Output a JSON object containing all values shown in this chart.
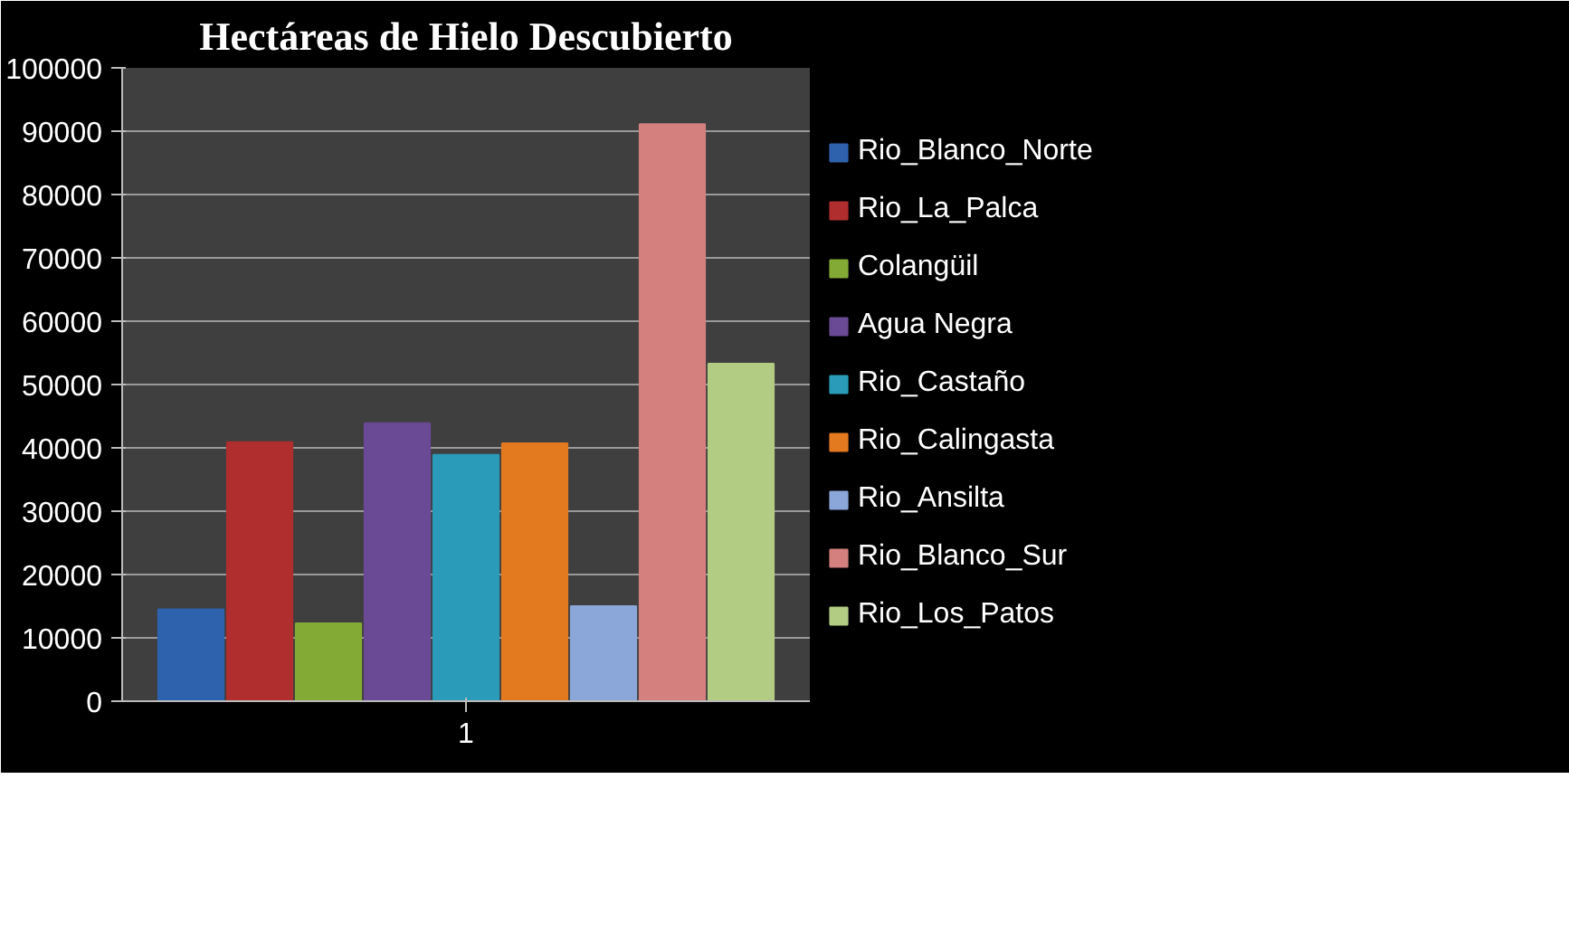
{
  "chart_data": {
    "type": "bar",
    "title": "Hectáreas de Hielo Descubierto",
    "categories": [
      "1"
    ],
    "series": [
      {
        "name": "Rio_Blanco_Norte",
        "color": "#2e62ad",
        "values": [
          14500
        ]
      },
      {
        "name": "Rio_La_Palca",
        "color": "#b02e2e",
        "values": [
          40900
        ]
      },
      {
        "name": "Colangüil",
        "color": "#84aa36",
        "values": [
          12300
        ]
      },
      {
        "name": "Agua Negra",
        "color": "#6a4a94",
        "values": [
          43900
        ]
      },
      {
        "name": "Rio_Castaño",
        "color": "#2a9bb8",
        "values": [
          38900
        ]
      },
      {
        "name": "Rio_Calingasta",
        "color": "#e37a20",
        "values": [
          40700
        ]
      },
      {
        "name": "Rio_Ansilta",
        "color": "#8ba6d8",
        "values": [
          15000
        ]
      },
      {
        "name": "Rio_Blanco_Sur",
        "color": "#d4807e",
        "values": [
          91100
        ]
      },
      {
        "name": "Rio_Los_Patos",
        "color": "#b3cc84",
        "values": [
          53300
        ]
      }
    ],
    "ylim": [
      0,
      100000
    ],
    "yticks": [
      0,
      10000,
      20000,
      30000,
      40000,
      50000,
      60000,
      70000,
      80000,
      90000,
      100000
    ],
    "grid": "y",
    "legend": "right"
  }
}
